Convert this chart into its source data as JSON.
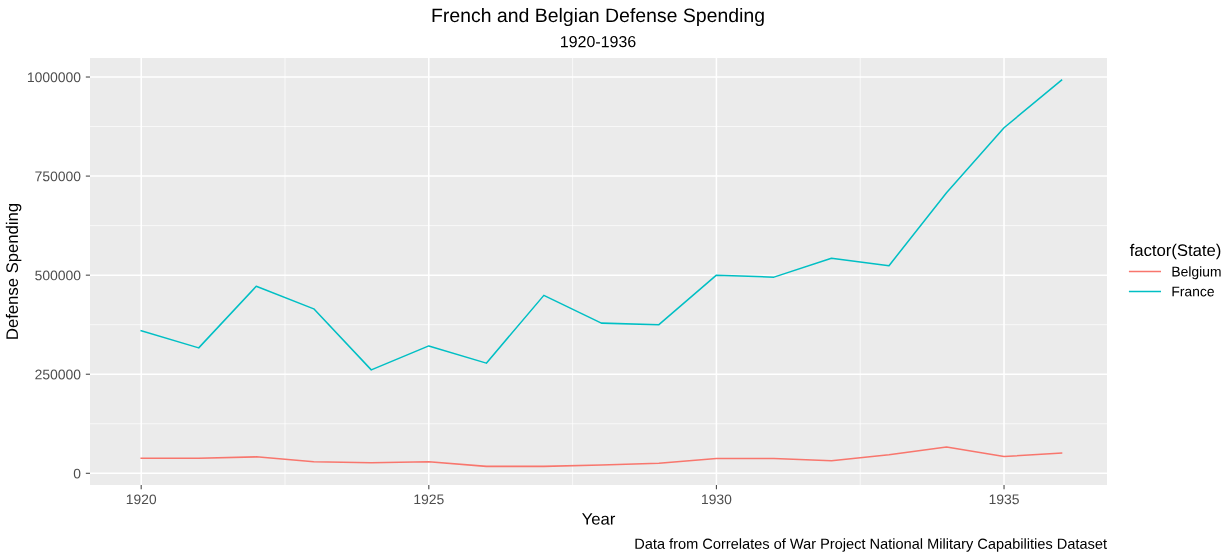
{
  "chart_data": {
    "type": "line",
    "title": "French and Belgian Defense Spending",
    "subtitle": "1920-1936",
    "xlabel": "Year",
    "ylabel": "Defense Spending",
    "legend_title": "factor(State)",
    "annotations": [
      "Data from Correlates of War Project National Military Capabilities Dataset"
    ],
    "x": [
      1920,
      1921,
      1922,
      1923,
      1924,
      1925,
      1926,
      1927,
      1928,
      1929,
      1930,
      1931,
      1932,
      1933,
      1934,
      1935,
      1936
    ],
    "series": [
      {
        "name": "Belgium",
        "color": "#f8766d",
        "values": [
          38000,
          38000,
          41500,
          29000,
          26500,
          29000,
          17500,
          17500,
          21000,
          25600,
          37500,
          37500,
          31500,
          47000,
          66500,
          42500,
          51000
        ]
      },
      {
        "name": "France",
        "color": "#00bfc4",
        "values": [
          360000,
          316500,
          472000,
          415000,
          261000,
          321500,
          278000,
          449000,
          379000,
          375000,
          500000,
          495000,
          542500,
          524000,
          708000,
          872000,
          992000
        ]
      }
    ],
    "xlim": [
      1919.11,
      1936.79
    ],
    "ylim": [
      -29500,
      1048000
    ],
    "xticks": [
      1920,
      1925,
      1930,
      1935
    ],
    "yticks": [
      0,
      250000,
      500000,
      750000,
      1000000
    ],
    "grid": true,
    "legend": "right",
    "marker": "none",
    "line_style": "solid"
  }
}
